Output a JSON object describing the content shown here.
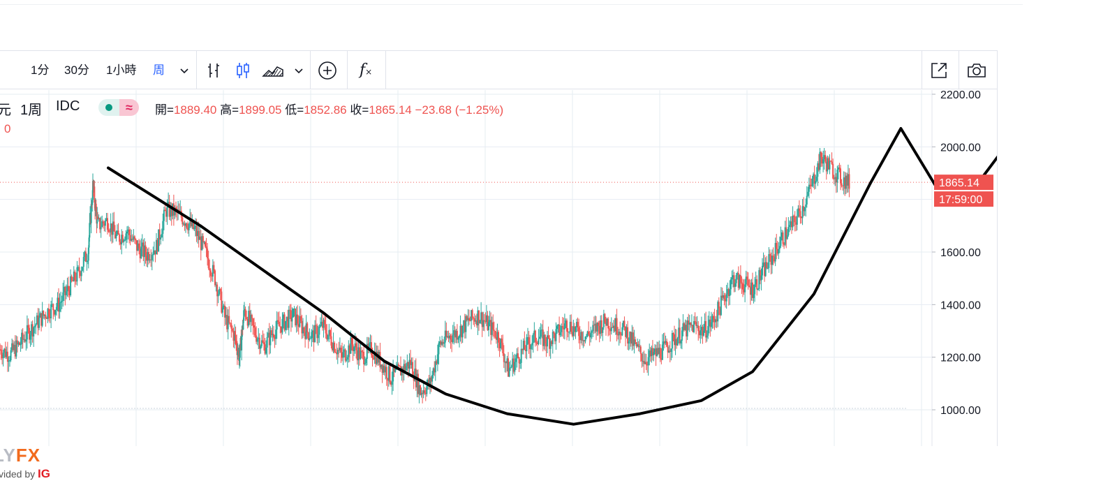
{
  "toolbar": {
    "intervals": [
      "1分",
      "30分",
      "1小時",
      "周"
    ],
    "active_interval": "周",
    "icons": [
      "chevron-down-icon",
      "bar-chart-icon",
      "candlestick-icon",
      "area-chart-icon",
      "chevron-down-icon",
      "add-indicator-icon",
      "fx-function-icon",
      "fullscreen-icon",
      "camera-icon"
    ],
    "fx_label": "f"
  },
  "legend": {
    "symbol_tail": "元",
    "interval": "1周",
    "source": "IDC",
    "pill_symbol": "≈",
    "second_line": "0"
  },
  "ohlc": {
    "open_label": "開=",
    "open": "1889.40",
    "high_label": "高=",
    "high": "1899.05",
    "low_label": "低=",
    "low": "1852.86",
    "close_label": "收=",
    "close": "1865.14",
    "change": "−23.68 (−1.25%)"
  },
  "price_labels": {
    "last_price": "1865.14",
    "countdown": "17:59:00",
    "color": "#ef5350"
  },
  "brand": {
    "name_a": "LY",
    "name_b": "FX",
    "provided_by": "vided by ",
    "ig": "IG"
  },
  "colors": {
    "up": "#26a69a",
    "down": "#ef5350",
    "grid": "#e6ecf2",
    "drawing": "#000000"
  },
  "chart_data": {
    "type": "candlestick",
    "y_axis_ticks": [
      "2200.00",
      "2000.00",
      "1600.00",
      "1400.00",
      "1200.00",
      "1000.00"
    ],
    "ylim": [
      880,
      2220
    ],
    "last_price": 1865.14,
    "trendline": {
      "type": "cup-and-handle",
      "points": [
        [
          0.0,
          1920
        ],
        [
          0.09,
          1700
        ],
        [
          0.21,
          1370
        ],
        [
          0.27,
          1185
        ],
        [
          0.33,
          1060
        ],
        [
          0.39,
          985
        ],
        [
          0.455,
          945
        ],
        [
          0.52,
          985
        ],
        [
          0.58,
          1035
        ],
        [
          0.63,
          1145
        ],
        [
          0.69,
          1440
        ],
        [
          0.745,
          1860
        ],
        [
          0.775,
          2070
        ],
        [
          0.81,
          1845
        ],
        [
          0.85,
          1860
        ],
        [
          0.925,
          2250
        ]
      ]
    },
    "series": [
      {
        "x": 0.0,
        "close": 1230
      },
      {
        "x": 0.01,
        "close": 1210
      },
      {
        "x": 0.02,
        "close": 1250
      },
      {
        "x": 0.03,
        "close": 1300
      },
      {
        "x": 0.04,
        "close": 1340
      },
      {
        "x": 0.05,
        "close": 1380
      },
      {
        "x": 0.06,
        "close": 1400
      },
      {
        "x": 0.07,
        "close": 1460
      },
      {
        "x": 0.08,
        "close": 1520
      },
      {
        "x": 0.09,
        "close": 1600
      },
      {
        "x": 0.095,
        "close": 1850
      },
      {
        "x": 0.1,
        "close": 1700
      },
      {
        "x": 0.11,
        "close": 1720
      },
      {
        "x": 0.12,
        "close": 1650
      },
      {
        "x": 0.13,
        "close": 1680
      },
      {
        "x": 0.14,
        "close": 1620
      },
      {
        "x": 0.15,
        "close": 1590
      },
      {
        "x": 0.16,
        "close": 1620
      },
      {
        "x": 0.17,
        "close": 1760
      },
      {
        "x": 0.18,
        "close": 1750
      },
      {
        "x": 0.19,
        "close": 1720
      },
      {
        "x": 0.2,
        "close": 1680
      },
      {
        "x": 0.21,
        "close": 1600
      },
      {
        "x": 0.22,
        "close": 1500
      },
      {
        "x": 0.23,
        "close": 1350
      },
      {
        "x": 0.24,
        "close": 1280
      },
      {
        "x": 0.245,
        "close": 1200
      },
      {
        "x": 0.25,
        "close": 1380
      },
      {
        "x": 0.26,
        "close": 1300
      },
      {
        "x": 0.27,
        "close": 1240
      },
      {
        "x": 0.28,
        "close": 1300
      },
      {
        "x": 0.29,
        "close": 1330
      },
      {
        "x": 0.3,
        "close": 1360
      },
      {
        "x": 0.31,
        "close": 1310
      },
      {
        "x": 0.32,
        "close": 1280
      },
      {
        "x": 0.33,
        "close": 1320
      },
      {
        "x": 0.34,
        "close": 1260
      },
      {
        "x": 0.35,
        "close": 1200
      },
      {
        "x": 0.36,
        "close": 1250
      },
      {
        "x": 0.37,
        "close": 1200
      },
      {
        "x": 0.38,
        "close": 1230
      },
      {
        "x": 0.39,
        "close": 1180
      },
      {
        "x": 0.4,
        "close": 1120
      },
      {
        "x": 0.41,
        "close": 1150
      },
      {
        "x": 0.42,
        "close": 1180
      },
      {
        "x": 0.43,
        "close": 1070
      },
      {
        "x": 0.44,
        "close": 1100
      },
      {
        "x": 0.45,
        "close": 1250
      },
      {
        "x": 0.46,
        "close": 1280
      },
      {
        "x": 0.47,
        "close": 1300
      },
      {
        "x": 0.48,
        "close": 1340
      },
      {
        "x": 0.49,
        "close": 1360
      },
      {
        "x": 0.5,
        "close": 1320
      },
      {
        "x": 0.51,
        "close": 1280
      },
      {
        "x": 0.52,
        "close": 1150
      },
      {
        "x": 0.53,
        "close": 1200
      },
      {
        "x": 0.54,
        "close": 1250
      },
      {
        "x": 0.55,
        "close": 1280
      },
      {
        "x": 0.56,
        "close": 1260
      },
      {
        "x": 0.57,
        "close": 1290
      },
      {
        "x": 0.58,
        "close": 1330
      },
      {
        "x": 0.59,
        "close": 1300
      },
      {
        "x": 0.6,
        "close": 1280
      },
      {
        "x": 0.61,
        "close": 1310
      },
      {
        "x": 0.62,
        "close": 1340
      },
      {
        "x": 0.63,
        "close": 1320
      },
      {
        "x": 0.64,
        "close": 1300
      },
      {
        "x": 0.65,
        "close": 1240
      },
      {
        "x": 0.66,
        "close": 1190
      },
      {
        "x": 0.67,
        "close": 1210
      },
      {
        "x": 0.68,
        "close": 1230
      },
      {
        "x": 0.69,
        "close": 1270
      },
      {
        "x": 0.7,
        "close": 1300
      },
      {
        "x": 0.71,
        "close": 1320
      },
      {
        "x": 0.72,
        "close": 1300
      },
      {
        "x": 0.73,
        "close": 1340
      },
      {
        "x": 0.74,
        "close": 1420
      },
      {
        "x": 0.75,
        "close": 1500
      },
      {
        "x": 0.76,
        "close": 1480
      },
      {
        "x": 0.77,
        "close": 1460
      },
      {
        "x": 0.78,
        "close": 1520
      },
      {
        "x": 0.79,
        "close": 1580
      },
      {
        "x": 0.8,
        "close": 1650
      },
      {
        "x": 0.81,
        "close": 1700
      },
      {
        "x": 0.82,
        "close": 1760
      },
      {
        "x": 0.83,
        "close": 1850
      },
      {
        "x": 0.84,
        "close": 1960
      },
      {
        "x": 0.85,
        "close": 1920
      },
      {
        "x": 0.86,
        "close": 1880
      },
      {
        "x": 0.87,
        "close": 1860
      }
    ]
  }
}
